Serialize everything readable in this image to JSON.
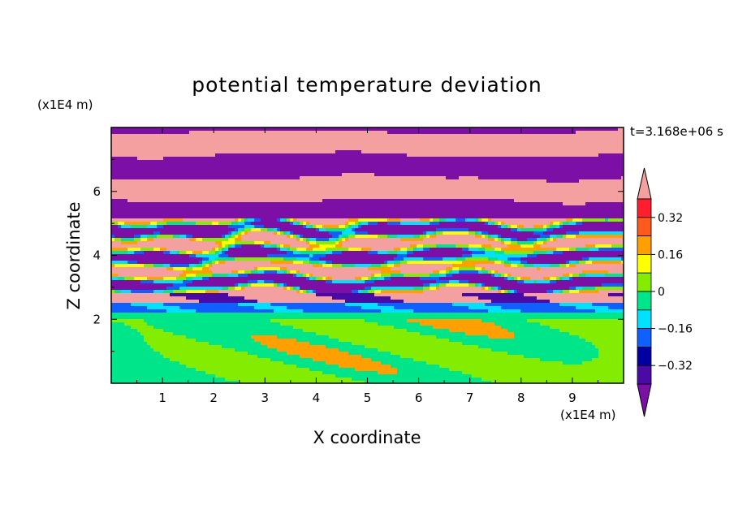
{
  "chart_data": {
    "type": "heatmap",
    "title": "potential temperature deviation",
    "xlabel": "X coordinate",
    "ylabel": "Z coordinate",
    "x_unit": "(x1E4 m)",
    "y_unit": "(x1E4 m)",
    "time_label": "t=3.168e+06 s",
    "xlim": [
      0,
      10
    ],
    "ylim": [
      0,
      8
    ],
    "x_ticks": [
      1,
      2,
      3,
      4,
      5,
      6,
      7,
      8,
      9
    ],
    "y_ticks": [
      2,
      4,
      6
    ],
    "colorbar": {
      "levels": [
        -0.4,
        -0.32,
        -0.24,
        -0.16,
        -0.08,
        0,
        0.08,
        0.16,
        0.24,
        0.32,
        0.4
      ],
      "labeled_levels": [
        "0.32",
        "0.16",
        "0",
        "-0.16",
        "-0.32"
      ],
      "labeled_values": [
        0.32,
        0.16,
        0,
        -0.16,
        -0.32
      ],
      "colors": [
        "#7b0fa6",
        "#4a0aa6",
        "#0000a0",
        "#1060ff",
        "#00e0ff",
        "#00e48a",
        "#84ec00",
        "#ffff00",
        "#ffa000",
        "#ff5a1e",
        "#ff1e2d",
        "#f5a0a0"
      ],
      "extend": "both"
    },
    "bands": [
      {
        "z": [
          0.0,
          2.05
        ],
        "pattern": "blobs",
        "value": 0.02
      },
      {
        "z": [
          2.05,
          2.25
        ],
        "pattern": "stripe",
        "value": -0.05
      },
      {
        "z": [
          2.25,
          2.5
        ],
        "pattern": "stripe",
        "value": -0.2
      },
      {
        "z": [
          2.5,
          2.8
        ],
        "pattern": "mixed",
        "value": -0.35
      },
      {
        "z": [
          2.8,
          5.2
        ],
        "pattern": "turbulent",
        "value": 0.0
      },
      {
        "z": [
          5.2,
          5.5
        ],
        "pattern": "stripe",
        "value": 0.45
      },
      {
        "z": [
          5.5,
          5.9
        ],
        "pattern": "stripe",
        "value": -0.45
      },
      {
        "z": [
          5.9,
          6.25
        ],
        "pattern": "stripe",
        "value": 0.45
      },
      {
        "z": [
          6.25,
          6.6
        ],
        "pattern": "stripe",
        "value": -0.45
      },
      {
        "z": [
          6.6,
          6.95
        ],
        "pattern": "stripe",
        "value": 0.45
      },
      {
        "z": [
          6.95,
          7.35
        ],
        "pattern": "stripe",
        "value": -0.45
      },
      {
        "z": [
          7.35,
          7.65
        ],
        "pattern": "stripe",
        "value": 0.45
      },
      {
        "z": [
          7.65,
          8.0
        ],
        "pattern": "stripe",
        "value": -0.45
      }
    ]
  }
}
